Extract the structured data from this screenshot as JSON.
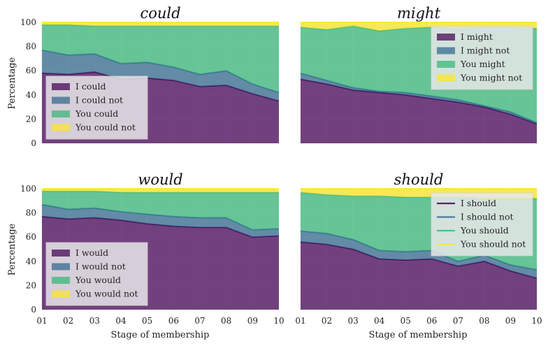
{
  "figure": {
    "xlabel": "Stage of membership",
    "ylabel": "Percentage"
  },
  "colors": {
    "series_fill": [
      "#440154",
      "#31688e",
      "#35b779",
      "#fde725"
    ],
    "series_line": [
      "#440154",
      "#31688e",
      "#35b779",
      "#fde725"
    ],
    "axes_bg": "#e5e5e5",
    "grid": "#f2f2f2"
  },
  "chart_data": [
    {
      "type": "area",
      "stacked": true,
      "title": "could",
      "categories": [
        "01",
        "02",
        "03",
        "04",
        "05",
        "06",
        "07",
        "08",
        "09",
        "10"
      ],
      "ylim": [
        0,
        100
      ],
      "yticks": [
        0,
        20,
        40,
        60,
        80,
        100
      ],
      "grid": true,
      "legend": "bottom-left",
      "legend_style": "patch",
      "series": [
        {
          "name": "I could",
          "values": [
            58,
            57,
            59,
            53,
            54,
            52,
            47,
            48,
            41,
            35
          ]
        },
        {
          "name": "I could not",
          "values": [
            19,
            16,
            15,
            13,
            13,
            11,
            10,
            12,
            8,
            7
          ]
        },
        {
          "name": "You could",
          "values": [
            21,
            25,
            23,
            31,
            30,
            34,
            40,
            37,
            48,
            55
          ]
        },
        {
          "name": "You could not",
          "values": [
            2,
            2,
            3,
            3,
            3,
            3,
            3,
            3,
            3,
            3
          ]
        }
      ]
    },
    {
      "type": "area",
      "stacked": true,
      "title": "might",
      "categories": [
        "01",
        "02",
        "03",
        "04",
        "05",
        "06",
        "07",
        "08",
        "09",
        "10"
      ],
      "ylim": [
        0,
        100
      ],
      "yticks": [
        0,
        20,
        40,
        60,
        80,
        100
      ],
      "grid": true,
      "legend": "top-right",
      "legend_style": "patch",
      "series": [
        {
          "name": "I might",
          "values": [
            53,
            49,
            44,
            42,
            40,
            37,
            34,
            30,
            24,
            16
          ]
        },
        {
          "name": "I might not",
          "values": [
            5,
            3,
            2,
            1,
            2,
            2,
            2,
            1,
            2,
            1
          ]
        },
        {
          "name": "You might",
          "values": [
            38,
            42,
            51,
            50,
            53,
            57,
            59,
            65,
            70,
            78
          ]
        },
        {
          "name": "You might not",
          "values": [
            4,
            6,
            3,
            7,
            5,
            4,
            5,
            4,
            4,
            5
          ]
        }
      ]
    },
    {
      "type": "area",
      "stacked": true,
      "title": "would",
      "categories": [
        "01",
        "02",
        "03",
        "04",
        "05",
        "06",
        "07",
        "08",
        "09",
        "10"
      ],
      "ylim": [
        0,
        100
      ],
      "yticks": [
        0,
        20,
        40,
        60,
        80,
        100
      ],
      "grid": true,
      "legend": "bottom-left",
      "legend_style": "patch",
      "series": [
        {
          "name": "I would",
          "values": [
            77,
            75,
            76,
            74,
            71,
            69,
            68,
            68,
            60,
            61
          ]
        },
        {
          "name": "I would not",
          "values": [
            10,
            8,
            8,
            7,
            8,
            8,
            8,
            8,
            6,
            6
          ]
        },
        {
          "name": "You would",
          "values": [
            11,
            15,
            14,
            16,
            18,
            20,
            21,
            21,
            31,
            30
          ]
        },
        {
          "name": "You would not",
          "values": [
            2,
            2,
            2,
            3,
            3,
            3,
            3,
            3,
            3,
            3
          ]
        }
      ]
    },
    {
      "type": "area",
      "stacked": true,
      "title": "should",
      "categories": [
        "01",
        "02",
        "03",
        "04",
        "05",
        "06",
        "07",
        "08",
        "09",
        "10"
      ],
      "ylim": [
        0,
        100
      ],
      "yticks": [
        0,
        20,
        40,
        60,
        80,
        100
      ],
      "grid": true,
      "legend": "top-right",
      "legend_style": "line",
      "series": [
        {
          "name": "I should",
          "values": [
            56,
            54,
            50,
            42,
            41,
            42,
            36,
            40,
            32,
            26
          ]
        },
        {
          "name": "I should not",
          "values": [
            9,
            9,
            8,
            7,
            7,
            7,
            4,
            5,
            5,
            7
          ]
        },
        {
          "name": "You should",
          "values": [
            32,
            32,
            36,
            45,
            45,
            44,
            53,
            47,
            55,
            59
          ]
        },
        {
          "name": "You should not",
          "values": [
            3,
            5,
            6,
            6,
            7,
            7,
            7,
            8,
            8,
            8
          ]
        }
      ]
    }
  ]
}
